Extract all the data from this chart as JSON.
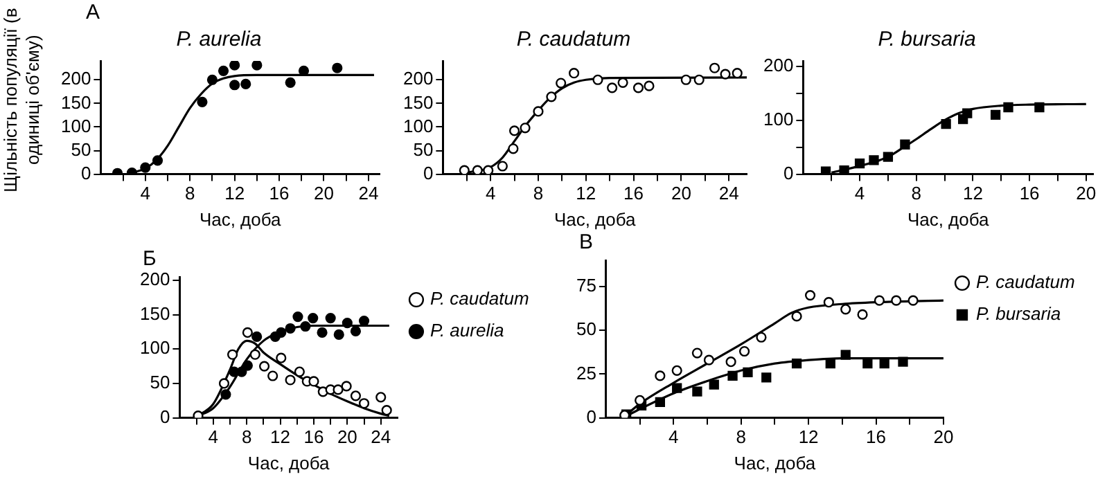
{
  "chart_data": [
    {
      "type": "scatter",
      "title": "P. aurelia",
      "ylabel": "Щільність популяції (в одиниці об'єму)",
      "xlabel": "Час, доба",
      "annotations": [
        "А"
      ],
      "xlim": [
        0,
        25
      ],
      "ylim": [
        0,
        240
      ],
      "xticks": [
        {
          "value": 2,
          "label": null
        },
        4,
        {
          "value": 6,
          "label": null
        },
        8,
        {
          "value": 10,
          "label": null
        },
        12,
        {
          "value": 14,
          "label": null
        },
        16,
        {
          "value": 18,
          "label": null
        },
        20,
        {
          "value": 22,
          "label": null
        },
        24
      ],
      "yticks": [
        0,
        50,
        100,
        150,
        200
      ],
      "grid": false,
      "legend": false,
      "series": [
        {
          "color": "#000000",
          "marker": "circle",
          "x": [
            1.5,
            2.8,
            4,
            5.1,
            9.1,
            10,
            11,
            12,
            12,
            13,
            14,
            17,
            18.2,
            21.2
          ],
          "values": [
            2,
            3,
            14,
            29,
            153,
            200,
            219,
            231,
            189,
            191,
            231,
            194,
            219,
            225
          ]
        },
        {
          "type": "line",
          "color": "#000000",
          "marker": "none",
          "x": [
            3,
            4,
            5,
            6,
            7,
            8,
            9,
            10,
            11,
            12,
            14,
            24.5
          ],
          "values": [
            4,
            12,
            30,
            60,
            100,
            140,
            170,
            192,
            203,
            208,
            210,
            210
          ]
        }
      ]
    },
    {
      "type": "scatter",
      "title": "P. caudatum",
      "xlabel": "Час, доба",
      "xlim": [
        0,
        25.5
      ],
      "ylim": [
        0,
        240
      ],
      "xticks": [
        {
          "value": 2,
          "label": null
        },
        4,
        {
          "value": 6,
          "label": null
        },
        8,
        {
          "value": 10,
          "label": null
        },
        12,
        {
          "value": 14,
          "label": null
        },
        16,
        {
          "value": 18,
          "label": null
        },
        20,
        {
          "value": 22,
          "label": null
        },
        24
      ],
      "yticks": [
        0,
        50,
        100,
        150,
        200
      ],
      "grid": false,
      "legend": false,
      "series": [
        {
          "color": "#ffffff",
          "marker": "circle",
          "x": [
            1.8,
            2.9,
            3.8,
            5,
            5.9,
            6,
            6.9,
            8,
            9.1,
            9.9,
            11,
            13,
            14.2,
            15.1,
            16.4,
            17.3,
            20.4,
            21.5,
            22.8,
            23.7,
            24.7
          ],
          "values": [
            8,
            8,
            8,
            17,
            54,
            92,
            98,
            133,
            164,
            193,
            214,
            200,
            183,
            194,
            183,
            187,
            200,
            200,
            225,
            212,
            214
          ]
        },
        {
          "type": "line",
          "color": "#000000",
          "marker": "none",
          "x": [
            2,
            4,
            5,
            6,
            7,
            8,
            9,
            10,
            11,
            12,
            14,
            25.5
          ],
          "values": [
            3,
            15,
            35,
            70,
            105,
            135,
            162,
            182,
            194,
            200,
            204,
            205
          ]
        }
      ]
    },
    {
      "type": "scatter",
      "title": "P. bursaria",
      "xlabel": "Час, доба",
      "xlim": [
        0,
        20.5
      ],
      "ylim": [
        0,
        210
      ],
      "xticks": [
        {
          "value": 2,
          "label": null
        },
        4,
        {
          "value": 6,
          "label": null
        },
        8,
        {
          "value": 10,
          "label": null
        },
        12,
        {
          "value": 14,
          "label": null
        },
        16,
        {
          "value": 18,
          "label": null
        },
        20
      ],
      "yticks": [
        0,
        {
          "value": 50,
          "label": null
        },
        100,
        {
          "value": 150,
          "label": null
        },
        200
      ],
      "grid": false,
      "legend": false,
      "series": [
        {
          "color": "#000000",
          "marker": "square",
          "x": [
            1.6,
            2.9,
            4,
            5,
            6,
            7.2,
            10.1,
            11.3,
            11.6,
            13.6,
            14.5,
            16.7
          ],
          "values": [
            5,
            7,
            20,
            26,
            32,
            55,
            93,
            102,
            113,
            110,
            124,
            124
          ]
        },
        {
          "type": "line",
          "color": "#000000",
          "marker": "none",
          "x": [
            2,
            4,
            6,
            7,
            8,
            9,
            10,
            11,
            12,
            14,
            16,
            20
          ],
          "values": [
            3,
            15,
            32,
            48,
            65,
            83,
            100,
            113,
            121,
            127,
            129,
            130
          ]
        }
      ]
    },
    {
      "type": "scatter",
      "xlabel": "Час, доба",
      "annotations": [
        "Б"
      ],
      "xlim": [
        0,
        26
      ],
      "ylim": [
        0,
        205
      ],
      "xticks": [
        {
          "value": 2,
          "label": null
        },
        4,
        {
          "value": 6,
          "label": null
        },
        8,
        {
          "value": 10,
          "label": null
        },
        12,
        {
          "value": 14,
          "label": null
        },
        16,
        {
          "value": 18,
          "label": null
        },
        20,
        {
          "value": 22,
          "label": null
        },
        24
      ],
      "yticks": [
        0,
        50,
        100,
        150,
        200
      ],
      "grid": false,
      "legend": "top right",
      "series": [
        {
          "name": "P. caudatum",
          "color": "#ffffff",
          "marker": "circle",
          "x": [
            2.2,
            5.3,
            6.3,
            8.1,
            9,
            10.1,
            11.1,
            12.1,
            13.2,
            14.3,
            15.2,
            16,
            17.1,
            18,
            18.9,
            19.9,
            21,
            22,
            24,
            24.7
          ],
          "values": [
            3,
            50,
            92,
            124,
            92,
            75,
            61,
            87,
            55,
            67,
            53,
            53,
            38,
            41,
            41,
            46,
            32,
            21,
            30,
            11
          ]
        },
        {
          "name": "P. aurelia",
          "color": "#000000",
          "marker": "circle",
          "x": [
            5.5,
            6.5,
            7.4,
            8.1,
            9.2,
            11.4,
            12.1,
            13.2,
            14.1,
            15,
            15.9,
            17,
            18,
            19,
            20,
            21,
            22
          ],
          "values": [
            34,
            67,
            67,
            76,
            118,
            118,
            124,
            130,
            147,
            133,
            145,
            124,
            145,
            121,
            138,
            126,
            141
          ]
        },
        {
          "type": "line",
          "color": "#000000",
          "marker": "none",
          "x": [
            2,
            4,
            6,
            7,
            8,
            9,
            10,
            12,
            14,
            16,
            18,
            20,
            22,
            24,
            25
          ],
          "values": [
            2,
            20,
            70,
            100,
            112,
            108,
            95,
            78,
            62,
            48,
            35,
            24,
            14,
            6,
            3
          ]
        },
        {
          "type": "line",
          "color": "#000000",
          "marker": "none",
          "x": [
            2,
            4,
            6,
            8,
            10,
            12,
            14,
            16,
            25
          ],
          "values": [
            2,
            14,
            45,
            85,
            112,
            125,
            132,
            134,
            134
          ]
        }
      ]
    },
    {
      "type": "scatter",
      "xlabel": "Час, доба",
      "annotations": [
        "В"
      ],
      "xlim": [
        0,
        20
      ],
      "ylim": [
        0,
        90
      ],
      "xticks": [
        {
          "value": 2,
          "label": null
        },
        4,
        {
          "value": 6,
          "label": null
        },
        8,
        {
          "value": 10,
          "label": null
        },
        12,
        {
          "value": 14,
          "label": null
        },
        16,
        {
          "value": 18,
          "label": null
        },
        20
      ],
      "yticks": [
        0,
        25,
        50,
        75
      ],
      "grid": false,
      "legend": "top right",
      "series": [
        {
          "name": "P. caudatum",
          "color": "#ffffff",
          "marker": "circle",
          "x": [
            1.1,
            2,
            3.2,
            4.2,
            5.4,
            6.1,
            7.4,
            8.2,
            9.2,
            11.3,
            12.1,
            13.2,
            14.2,
            15.2,
            16.2,
            17.2,
            18.2
          ],
          "values": [
            1.5,
            10,
            24,
            27,
            37,
            33,
            32,
            38,
            46,
            58,
            70,
            66,
            62,
            59,
            67,
            67,
            67
          ]
        },
        {
          "name": "P. bursaria",
          "color": "#000000",
          "marker": "square",
          "x": [
            1.2,
            2.1,
            3.2,
            4.2,
            5.4,
            6.4,
            7.5,
            8.4,
            9.5,
            11.3,
            13.3,
            14.2,
            15.5,
            16.5,
            17.6
          ],
          "values": [
            2,
            7,
            9,
            17,
            15,
            19,
            24,
            26,
            23,
            31,
            31,
            36,
            31,
            31,
            32
          ]
        },
        {
          "type": "line",
          "color": "#000000",
          "marker": "none",
          "x": [
            1,
            2,
            4,
            6,
            8,
            10,
            11,
            12,
            14,
            16,
            20
          ],
          "values": [
            0,
            8,
            20,
            31,
            42,
            54,
            60,
            63,
            65,
            66,
            67
          ]
        },
        {
          "type": "line",
          "color": "#000000",
          "marker": "none",
          "x": [
            1,
            2,
            4,
            6,
            8,
            10,
            12,
            14,
            20
          ],
          "values": [
            0,
            5,
            14,
            21,
            27,
            31,
            33,
            34,
            34
          ]
        }
      ]
    }
  ]
}
